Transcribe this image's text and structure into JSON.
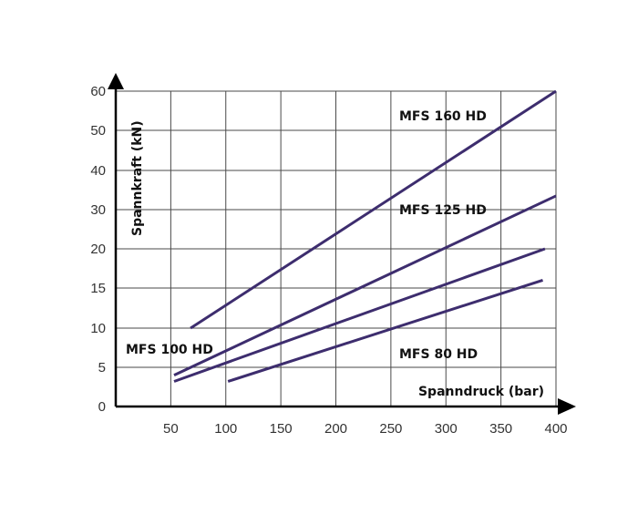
{
  "chart_data": {
    "type": "line",
    "xlabel": "Spanndruck (bar)",
    "ylabel": "Spannkraft (kN)",
    "xlim": [
      0,
      400
    ],
    "ylim": [
      0,
      60
    ],
    "x_ticks": [
      "50",
      "100",
      "150",
      "200",
      "250",
      "300",
      "350",
      "400"
    ],
    "y_ticks": [
      "0",
      "5",
      "10",
      "15",
      "20",
      "30",
      "40",
      "50",
      "60"
    ],
    "grid": true,
    "colors": {
      "line": "#3d2d6e",
      "grid": "#4a4a4a",
      "axis": "#000000"
    },
    "series": [
      {
        "name": "MFS 160 HD",
        "x": [
          68,
          400
        ],
        "y": [
          10,
          60
        ]
      },
      {
        "name": "MFS 125 HD",
        "x": [
          53,
          400
        ],
        "y": [
          4,
          33.5
        ]
      },
      {
        "name": "MFS 100 HD",
        "x": [
          53,
          390
        ],
        "y": [
          3.2,
          20
        ]
      },
      {
        "name": "MFS 80 HD",
        "x": [
          102,
          388
        ],
        "y": [
          3.2,
          16
        ]
      }
    ]
  }
}
